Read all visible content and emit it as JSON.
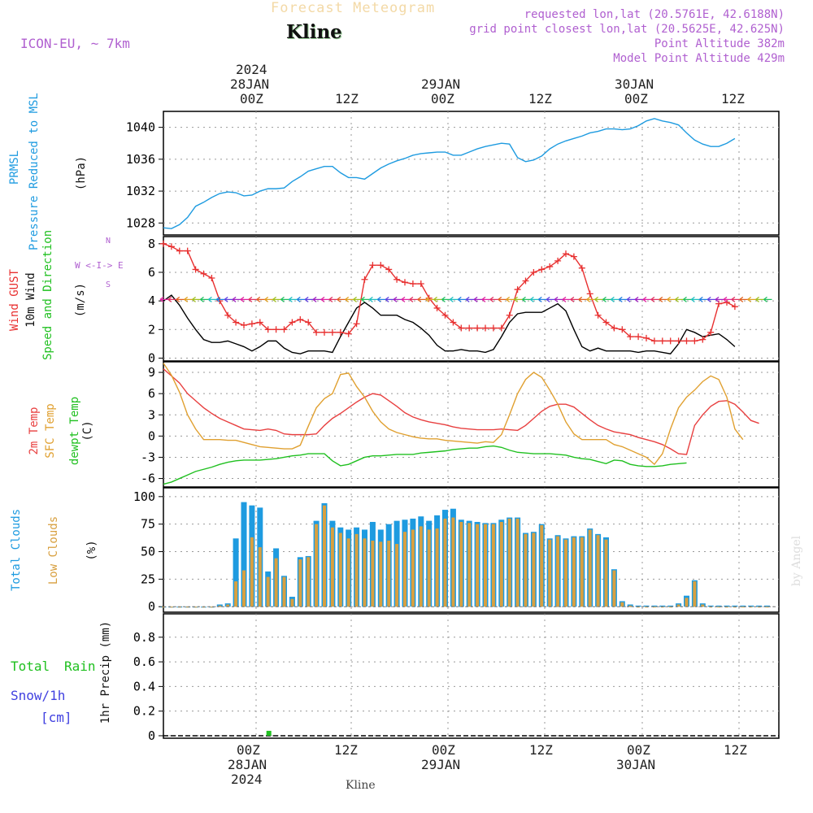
{
  "header": {
    "title_faded": "Forecast Meteogram",
    "location": "Kline",
    "model": "ICON-EU, ~ 7km",
    "requested": "requested lon,lat (20.5761E, 42.6188N)",
    "gridpoint": "grid point closest lon,lat (20.5625E, 42.625N)",
    "point_alt": "Point Altitude 382m",
    "model_alt": "Model Point Altitude 429m",
    "watermark": "by Angel",
    "bottom_location": "Kline"
  },
  "time_axis": {
    "top_year": "2024",
    "top_dates": [
      "28JAN",
      "29JAN",
      "30JAN"
    ],
    "ticks": [
      "00Z",
      "12Z",
      "00Z",
      "12Z",
      "00Z",
      "12Z"
    ],
    "bottom_dates": [
      "28JAN",
      "29JAN",
      "30JAN"
    ],
    "bottom_year": "2024"
  },
  "colors": {
    "pressure": "#1e9be0",
    "gust": "#e83030",
    "wind": "#000000",
    "temp2m": "#e84040",
    "sfc": "#e0a030",
    "dewpt": "#20c020",
    "total_cloud": "#1e9be0",
    "low_cloud": "#d8a040",
    "rain": "#20c020",
    "snow": "#4040e0",
    "header": "#b060d0"
  },
  "panel_labels": {
    "pressure": [
      "PRMSL",
      "Pressure Reduced to MSL",
      "(hPa)"
    ],
    "wind": [
      "Wind GUST",
      "10m Wind",
      "Speed and Direction",
      "(m/s)"
    ],
    "temp": [
      "2m Temp",
      "SFC Temp",
      "dewpt Temp",
      "(C)"
    ],
    "cloud": [
      "Total Clouds",
      "Low Clouds",
      "(%)"
    ],
    "precip": [
      "Total",
      "Rain",
      "Snow/1h",
      "[cm]",
      "1hr Precip (mm)"
    ],
    "compass": {
      "n": "N",
      "s": "S",
      "w": "W",
      "e": "E",
      "arrow": "<-I->"
    }
  },
  "chart_data": [
    {
      "type": "line",
      "name": "pressure",
      "ylim": [
        1026.5,
        1042
      ],
      "yticks": [
        "1028",
        "1032",
        "1036",
        "1040"
      ],
      "ytick_values": [
        1028,
        1032,
        1036,
        1040
      ],
      "series": [
        {
          "name": "PRMSL",
          "values": [
            1027.4,
            1027.3,
            1027.8,
            1028.7,
            1030.1,
            1030.6,
            1031.2,
            1031.7,
            1031.9,
            1031.8,
            1031.4,
            1031.5,
            1032.0,
            1032.3,
            1032.3,
            1032.4,
            1033.2,
            1033.8,
            1034.5,
            1034.8,
            1035.1,
            1035.1,
            1034.3,
            1033.7,
            1033.7,
            1033.5,
            1034.2,
            1034.9,
            1035.4,
            1035.8,
            1036.1,
            1036.5,
            1036.7,
            1036.8,
            1036.9,
            1036.9,
            1036.5,
            1036.5,
            1036.9,
            1037.3,
            1037.6,
            1037.8,
            1038.0,
            1037.9,
            1036.2,
            1035.7,
            1035.9,
            1036.4,
            1037.3,
            1037.9,
            1038.3,
            1038.6,
            1038.9,
            1039.3,
            1039.5,
            1039.8,
            1039.8,
            1039.7,
            1039.8,
            1040.2,
            1040.8,
            1041.1,
            1040.8,
            1040.6,
            1040.3,
            1039.3,
            1038.4,
            1037.9,
            1037.6,
            1037.6,
            1038.0,
            1038.6
          ]
        }
      ]
    },
    {
      "type": "line",
      "name": "wind",
      "ylim": [
        -0.2,
        8.5
      ],
      "yticks": [
        "0",
        "2",
        "4",
        "6",
        "8"
      ],
      "ytick_values": [
        0,
        2,
        4,
        6,
        8
      ],
      "series": [
        {
          "name": "Wind GUST",
          "values": [
            8.0,
            7.8,
            7.5,
            7.5,
            6.2,
            5.9,
            5.6,
            4.0,
            3.0,
            2.5,
            2.3,
            2.4,
            2.5,
            2.0,
            2.0,
            2.0,
            2.5,
            2.7,
            2.5,
            1.8,
            1.8,
            1.8,
            1.8,
            1.7,
            2.4,
            5.5,
            6.5,
            6.5,
            6.2,
            5.5,
            5.3,
            5.2,
            5.2,
            4.2,
            3.5,
            3.0,
            2.5,
            2.1,
            2.1,
            2.1,
            2.1,
            2.1,
            2.1,
            3.0,
            4.8,
            5.4,
            6.0,
            6.2,
            6.4,
            6.8,
            7.3,
            7.1,
            6.3,
            4.5,
            3.0,
            2.5,
            2.1,
            2.0,
            1.5,
            1.5,
            1.4,
            1.2,
            1.2,
            1.2,
            1.2,
            1.2,
            1.2,
            1.3,
            1.8,
            3.8,
            3.9,
            3.6
          ]
        },
        {
          "name": "10m Wind",
          "values": [
            4.0,
            4.4,
            3.7,
            2.8,
            2.0,
            1.3,
            1.1,
            1.1,
            1.2,
            1.0,
            0.8,
            0.5,
            0.8,
            1.2,
            1.2,
            0.7,
            0.4,
            0.3,
            0.5,
            0.5,
            0.5,
            0.4,
            1.5,
            2.5,
            3.5,
            3.9,
            3.5,
            3.0,
            3.0,
            3.0,
            2.7,
            2.5,
            2.1,
            1.6,
            0.9,
            0.5,
            0.5,
            0.6,
            0.5,
            0.5,
            0.4,
            0.6,
            1.5,
            2.5,
            3.1,
            3.2,
            3.2,
            3.2,
            3.5,
            3.8,
            3.3,
            2.0,
            0.8,
            0.5,
            0.7,
            0.5,
            0.5,
            0.5,
            0.5,
            0.4,
            0.5,
            0.5,
            0.4,
            0.3,
            1.0,
            2.0,
            1.8,
            1.5,
            1.6,
            1.7,
            1.3,
            0.8
          ]
        }
      ]
    },
    {
      "type": "line",
      "name": "temperature",
      "ylim": [
        -7.2,
        10.5
      ],
      "yticks": [
        "-6",
        "-3",
        "0",
        "3",
        "6",
        "9"
      ],
      "ytick_values": [
        -6,
        -3,
        0,
        3,
        6,
        9
      ],
      "series": [
        {
          "name": "2m Temp",
          "values": [
            9.5,
            8.5,
            7.5,
            6.0,
            5.0,
            4.0,
            3.2,
            2.5,
            2.0,
            1.5,
            1.0,
            0.9,
            0.8,
            1.0,
            0.8,
            0.3,
            0.2,
            0.2,
            0.2,
            0.3,
            1.5,
            2.5,
            3.2,
            4.0,
            4.8,
            5.5,
            6.0,
            5.8,
            5.0,
            4.2,
            3.3,
            2.7,
            2.3,
            2.0,
            1.8,
            1.6,
            1.3,
            1.1,
            1.0,
            0.9,
            0.9,
            0.9,
            1.0,
            0.9,
            0.8,
            1.5,
            2.5,
            3.5,
            4.2,
            4.5,
            4.5,
            4.1,
            3.2,
            2.3,
            1.5,
            1.0,
            0.6,
            0.4,
            0.2,
            -0.2,
            -0.5,
            -0.8,
            -1.2,
            -1.8,
            -2.5,
            -2.6,
            1.5,
            3.0,
            4.2,
            4.9,
            5.0,
            4.5,
            3.4,
            2.2,
            1.8
          ]
        },
        {
          "name": "SFC Temp",
          "values": [
            10.3,
            8.6,
            6.2,
            3.0,
            1.0,
            -0.5,
            -0.5,
            -0.5,
            -0.6,
            -0.6,
            -0.9,
            -1.2,
            -1.5,
            -1.6,
            -1.7,
            -1.8,
            -1.8,
            -1.3,
            1.4,
            4.0,
            5.3,
            6.0,
            8.7,
            8.9,
            7.0,
            5.5,
            3.5,
            2.0,
            1.0,
            0.5,
            0.2,
            -0.1,
            -0.3,
            -0.4,
            -0.4,
            -0.6,
            -0.7,
            -0.8,
            -0.9,
            -1.0,
            -0.8,
            -0.9,
            0.2,
            3.0,
            6.0,
            8.0,
            9.0,
            8.3,
            6.5,
            4.5,
            2.0,
            0.3,
            -0.5,
            -0.5,
            -0.5,
            -0.5,
            -1.2,
            -1.5,
            -2.0,
            -2.5,
            -3.0,
            -4.0,
            -2.5,
            1.0,
            4.0,
            5.5,
            6.5,
            7.7,
            8.5,
            8.0,
            5.5,
            1.0,
            -0.5
          ]
        },
        {
          "name": "dewpt Temp",
          "values": [
            -6.8,
            -6.5,
            -6.0,
            -5.5,
            -5.0,
            -4.7,
            -4.4,
            -4.0,
            -3.7,
            -3.5,
            -3.4,
            -3.4,
            -3.4,
            -3.3,
            -3.2,
            -3.0,
            -2.8,
            -2.7,
            -2.5,
            -2.5,
            -2.5,
            -3.5,
            -4.2,
            -4.0,
            -3.5,
            -3.0,
            -2.8,
            -2.8,
            -2.7,
            -2.6,
            -2.6,
            -2.6,
            -2.4,
            -2.3,
            -2.2,
            -2.1,
            -1.9,
            -1.8,
            -1.7,
            -1.7,
            -1.5,
            -1.4,
            -1.6,
            -2.0,
            -2.3,
            -2.4,
            -2.5,
            -2.5,
            -2.5,
            -2.6,
            -2.7,
            -3.0,
            -3.2,
            -3.3,
            -3.6,
            -3.9,
            -3.4,
            -3.5,
            -4.0,
            -4.2,
            -4.3,
            -4.3,
            -4.2,
            -4.0,
            -3.9,
            -3.8
          ]
        }
      ]
    },
    {
      "type": "bar",
      "name": "clouds",
      "ylim": [
        -5,
        108
      ],
      "yticks": [
        "0",
        "25",
        "50",
        "75",
        "100"
      ],
      "ytick_values": [
        0,
        25,
        50,
        75,
        100
      ],
      "series": [
        {
          "name": "Total Clouds",
          "values": [
            0,
            0,
            0,
            0,
            0,
            0,
            0,
            2,
            3,
            62,
            95,
            92,
            90,
            32,
            53,
            28,
            9,
            45,
            46,
            78,
            94,
            78,
            72,
            70,
            72,
            70,
            77,
            70,
            75,
            78,
            79,
            80,
            82,
            78,
            83,
            88,
            89,
            79,
            78,
            77,
            76,
            76,
            79,
            81,
            81,
            67,
            68,
            75,
            62,
            65,
            62,
            64,
            64,
            71,
            66,
            63,
            34,
            5,
            2,
            1,
            1,
            1,
            1,
            1,
            3,
            10,
            24,
            3,
            1,
            1,
            1,
            1,
            1,
            1,
            1,
            1
          ]
        },
        {
          "name": "Low Clouds",
          "values": [
            0,
            0,
            0,
            0,
            0,
            0,
            0,
            1,
            2,
            23,
            33,
            63,
            54,
            27,
            44,
            27,
            7,
            43,
            45,
            75,
            92,
            72,
            67,
            62,
            66,
            62,
            60,
            59,
            60,
            57,
            68,
            70,
            73,
            70,
            71,
            80,
            81,
            77,
            76,
            75,
            75,
            75,
            77,
            80,
            80,
            66,
            67,
            74,
            61,
            64,
            61,
            63,
            63,
            70,
            65,
            61,
            33,
            4,
            1,
            0,
            0,
            0,
            0,
            0,
            2,
            8,
            23,
            2,
            0,
            0,
            0,
            0,
            0,
            0,
            0,
            0
          ]
        }
      ]
    },
    {
      "type": "bar",
      "name": "precipitation",
      "ylim": [
        -0.02,
        0.99
      ],
      "yticks": [
        "0",
        "0.2",
        "0.4",
        "0.6",
        "0.8"
      ],
      "ytick_values": [
        0,
        0.2,
        0.4,
        0.6,
        0.8
      ],
      "series": [
        {
          "name": "Total Rain",
          "values": [
            {
              "hour_index": 13,
              "value": 0.04
            }
          ]
        }
      ]
    }
  ]
}
